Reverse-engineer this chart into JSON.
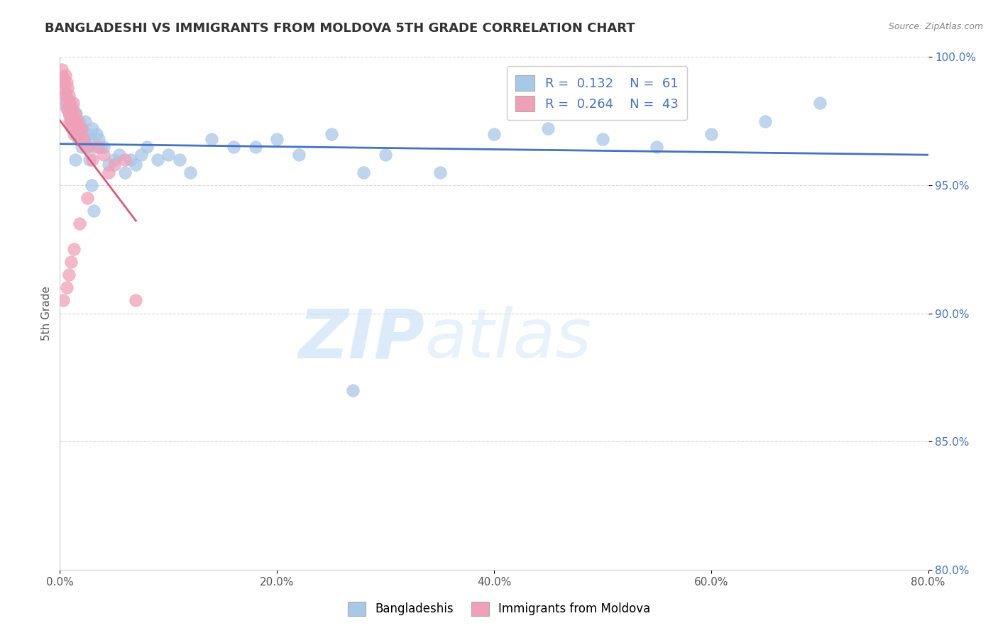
{
  "title": "BANGLADESHI VS IMMIGRANTS FROM MOLDOVA 5TH GRADE CORRELATION CHART",
  "source": "Source: ZipAtlas.com",
  "ylabel": "5th Grade",
  "legend_label_blue": "Bangladeshis",
  "legend_label_pink": "Immigrants from Moldova",
  "R_blue": 0.132,
  "N_blue": 61,
  "R_pink": 0.264,
  "N_pink": 43,
  "xlim": [
    0.0,
    80.0
  ],
  "ylim": [
    80.0,
    100.0
  ],
  "xticks": [
    0.0,
    20.0,
    40.0,
    60.0,
    80.0
  ],
  "yticks": [
    80.0,
    85.0,
    90.0,
    95.0,
    100.0
  ],
  "blue_color": "#a8c8e8",
  "pink_color": "#f0a0b8",
  "blue_line_color": "#4472c4",
  "pink_line_color": "#e05878",
  "grid_color": "#cccccc",
  "title_color": "#333333",
  "source_color": "#888888",
  "tick_color_y": "#4472c4",
  "tick_color_x": "#555555",
  "watermark_text": "ZIPatlas",
  "watermark_color": "#d8eaf8",
  "blue_scatter_x": [
    0.3,
    0.5,
    0.6,
    0.8,
    0.9,
    1.0,
    1.1,
    1.2,
    1.3,
    1.5,
    1.6,
    1.7,
    1.8,
    1.9,
    2.0,
    2.1,
    2.2,
    2.3,
    2.4,
    2.5,
    2.6,
    2.7,
    2.8,
    3.0,
    3.2,
    3.4,
    3.6,
    3.8,
    4.0,
    4.5,
    5.0,
    5.5,
    6.0,
    6.5,
    7.0,
    7.5,
    8.0,
    9.0,
    10.0,
    11.0,
    12.0,
    14.0,
    16.0,
    18.0,
    20.0,
    22.0,
    25.0,
    28.0,
    30.0,
    35.0,
    40.0,
    45.0,
    50.0,
    55.0,
    60.0,
    65.0,
    70.0,
    1.4,
    2.9,
    3.1,
    27.0
  ],
  "blue_scatter_y": [
    98.2,
    98.5,
    98.0,
    97.8,
    98.3,
    97.5,
    97.2,
    98.0,
    97.0,
    97.8,
    97.3,
    96.8,
    97.5,
    97.0,
    96.5,
    97.2,
    96.8,
    97.5,
    96.5,
    97.0,
    96.5,
    96.0,
    96.8,
    97.2,
    96.5,
    97.0,
    96.8,
    96.5,
    96.5,
    95.8,
    96.0,
    96.2,
    95.5,
    96.0,
    95.8,
    96.2,
    96.5,
    96.0,
    96.2,
    96.0,
    95.5,
    96.8,
    96.5,
    96.5,
    96.8,
    96.2,
    97.0,
    95.5,
    96.2,
    95.5,
    97.0,
    97.2,
    96.8,
    96.5,
    97.0,
    97.5,
    98.2,
    96.0,
    95.0,
    94.0,
    87.0
  ],
  "pink_scatter_x": [
    0.2,
    0.3,
    0.4,
    0.4,
    0.5,
    0.5,
    0.6,
    0.6,
    0.7,
    0.7,
    0.8,
    0.8,
    0.9,
    0.9,
    1.0,
    1.0,
    1.1,
    1.2,
    1.2,
    1.3,
    1.4,
    1.5,
    1.5,
    1.6,
    1.7,
    1.8,
    2.0,
    2.2,
    2.5,
    3.0,
    3.5,
    4.0,
    5.0,
    6.0,
    0.3,
    0.6,
    0.8,
    1.0,
    1.3,
    1.8,
    2.5,
    4.5,
    7.0
  ],
  "pink_scatter_y": [
    99.5,
    99.2,
    99.0,
    98.8,
    99.3,
    98.5,
    99.0,
    98.2,
    98.8,
    98.0,
    98.5,
    97.8,
    98.2,
    97.5,
    98.0,
    97.5,
    97.8,
    98.2,
    97.2,
    97.5,
    97.8,
    97.5,
    97.0,
    97.5,
    97.2,
    97.0,
    97.2,
    96.8,
    96.5,
    96.0,
    96.5,
    96.2,
    95.8,
    96.0,
    90.5,
    91.0,
    91.5,
    92.0,
    92.5,
    93.5,
    94.5,
    95.5,
    90.5
  ]
}
